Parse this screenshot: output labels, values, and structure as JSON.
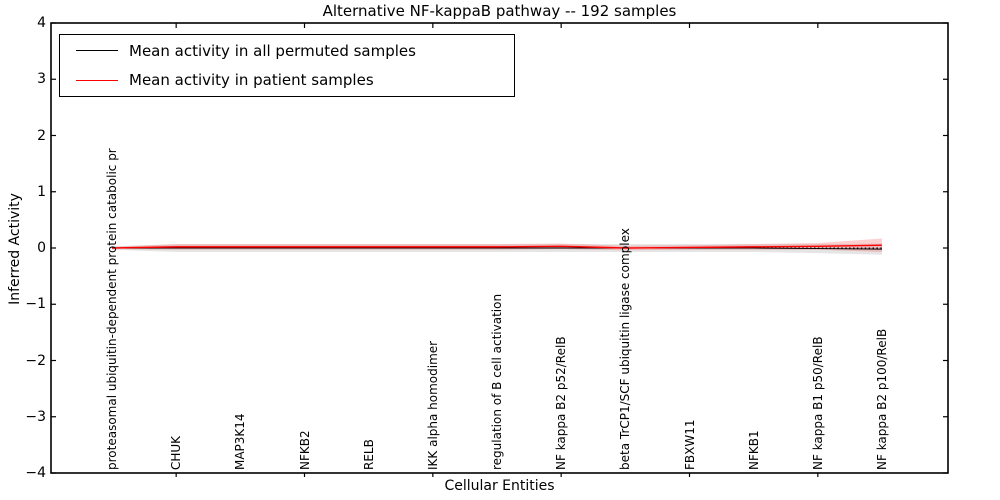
{
  "figure": {
    "title": "Alternative NF-kappaB pathway -- 192 samples"
  },
  "legend": {
    "entries": [
      {
        "label": "Mean activity in all permuted samples",
        "color": "#000000"
      },
      {
        "label": "Mean activity in patient samples",
        "color": "#ff0000"
      }
    ]
  },
  "chart_data": {
    "type": "line",
    "title": "Alternative NF-kappaB pathway -- 192 samples",
    "xlabel": "Cellular Entities",
    "ylabel": "Inferred Activity",
    "ylim": [
      -4,
      4
    ],
    "yticks": [
      4,
      3,
      2,
      1,
      0,
      -1,
      -2,
      -3,
      -4
    ],
    "ytick_labels": [
      "4",
      "3",
      "2",
      "1",
      "0",
      "−1",
      "−2",
      "−3",
      "−4"
    ],
    "grid": false,
    "legend_position": "upper left",
    "categories": [
      "proteasomal ubiquitin-dependent protein catabolic pr",
      "CHUK",
      "MAP3K14",
      "NFKB2",
      "RELB",
      "IKK alpha homodimer",
      "regulation of B cell activation",
      "NF kappa B2 p52/RelB",
      "beta TrCP1/SCF ubiquitin ligase complex",
      "FBXW11",
      "NFKB1",
      "NF kappa B1 p50/RelB",
      "NF kappa B2 p100/RelB"
    ],
    "series": [
      {
        "name": "Mean activity in all permuted samples",
        "color": "#000000",
        "line_style": "solid",
        "line_width": 1,
        "values": [
          0,
          0,
          0,
          0,
          0,
          0,
          0,
          0,
          0,
          0,
          0,
          -0.01,
          -0.02
        ],
        "band_halfwidth": [
          0.03,
          0.07,
          0.07,
          0.07,
          0.07,
          0.07,
          0.07,
          0.07,
          0.07,
          0.07,
          0.07,
          0.08,
          0.1
        ],
        "band_color": "rgba(0,0,0,0.10)"
      },
      {
        "name": "Mean activity in patient samples",
        "color": "#ff0000",
        "line_style": "solid",
        "line_width": 1.4,
        "values": [
          0,
          0.02,
          0.02,
          0.02,
          0.02,
          0.02,
          0.02,
          0.03,
          0,
          0.01,
          0.02,
          0.03,
          0.05
        ],
        "band_halfwidth": [
          0.02,
          0.05,
          0.05,
          0.05,
          0.05,
          0.05,
          0.05,
          0.05,
          0.04,
          0.04,
          0.05,
          0.06,
          0.12
        ],
        "band_color": "rgba(255,0,0,0.18)"
      }
    ],
    "zero_line": {
      "value": 0,
      "color": "#000000",
      "style": "dotted"
    }
  }
}
